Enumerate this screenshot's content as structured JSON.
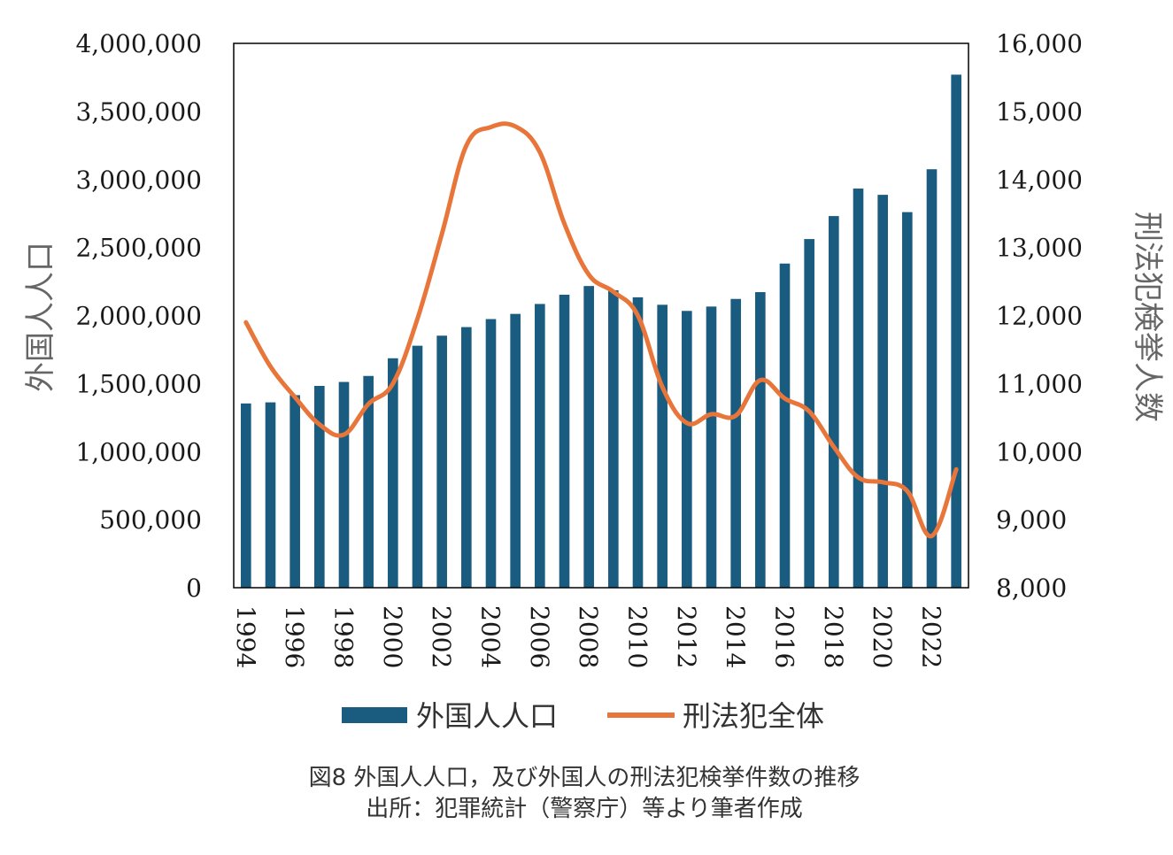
{
  "chart_data": {
    "type": "bar+line",
    "x": [
      1994,
      1995,
      1996,
      1997,
      1998,
      1999,
      2000,
      2001,
      2002,
      2003,
      2004,
      2005,
      2006,
      2007,
      2008,
      2009,
      2010,
      2011,
      2012,
      2013,
      2014,
      2015,
      2016,
      2017,
      2018,
      2019,
      2020,
      2021,
      2022,
      2023
    ],
    "x_tick_labels": [
      "1994",
      "1996",
      "1998",
      "2000",
      "2002",
      "2004",
      "2006",
      "2008",
      "2010",
      "2012",
      "2014",
      "2016",
      "2018",
      "2020",
      "2022"
    ],
    "series": [
      {
        "name": "外国人人口",
        "type": "bar",
        "axis": "left",
        "color": "#1a5b80",
        "values": [
          1354000,
          1362000,
          1415000,
          1483000,
          1512000,
          1556000,
          1686000,
          1778000,
          1852000,
          1915000,
          1974000,
          2012000,
          2085000,
          2153000,
          2217000,
          2186000,
          2134000,
          2079000,
          2034000,
          2066000,
          2122000,
          2172000,
          2382000,
          2562000,
          2731000,
          2933000,
          2887000,
          2760000,
          3075000,
          3770000
        ]
      },
      {
        "name": "刑法犯全体",
        "type": "line",
        "axis": "right",
        "color": "#e8763a",
        "values": [
          11900,
          11250,
          10800,
          10400,
          10250,
          10700,
          11000,
          11950,
          13200,
          14500,
          14770,
          14780,
          14400,
          13350,
          12600,
          12350,
          12000,
          10950,
          10420,
          10550,
          10530,
          11050,
          10780,
          10590,
          10070,
          9620,
          9550,
          9420,
          8760,
          9740
        ]
      }
    ],
    "y_left": {
      "title": "外国人人口",
      "min": 0,
      "max": 4000000,
      "tick_labels": [
        "0",
        "500,000",
        "1,000,000",
        "1,500,000",
        "2,000,000",
        "2,500,000",
        "3,000,000",
        "3,500,000",
        "4,000,000"
      ]
    },
    "y_right": {
      "title": "刑法犯検挙人数",
      "min": 8000,
      "max": 16000,
      "tick_labels": [
        "8,000",
        "9,000",
        "10,000",
        "11,000",
        "12,000",
        "13,000",
        "14,000",
        "15,000",
        "16,000"
      ]
    },
    "grid": false,
    "legend": {
      "placement": "bottom",
      "entries": [
        "外国人人口",
        "刑法犯全体"
      ]
    },
    "caption": {
      "line1": "図8 外国人人口，及び外国人の刑法犯検挙件数の推移",
      "line2": "出所：犯罪統計（警察庁）等より筆者作成"
    }
  }
}
